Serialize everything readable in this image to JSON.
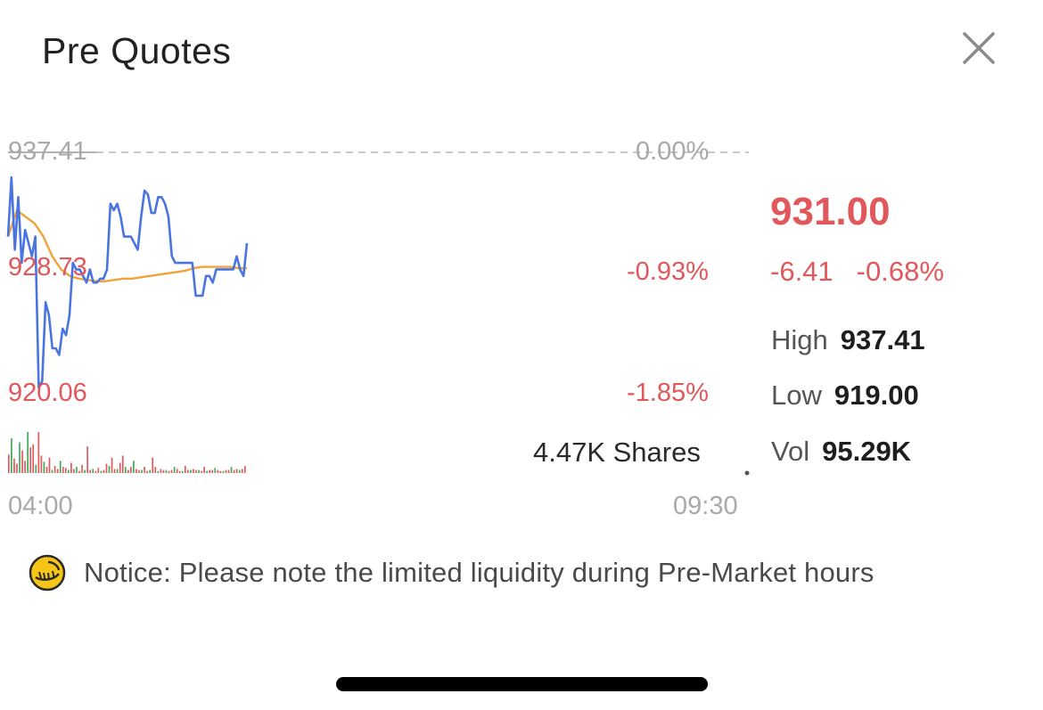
{
  "header": {
    "title": "Pre Quotes"
  },
  "icons": {
    "close": "close-icon",
    "notice": "coin-notice-icon"
  },
  "colors": {
    "up": "#e0585b",
    "price_line": "#4a74e0",
    "avg_line": "#f0a33a",
    "vol_up": "#e0585b",
    "vol_down": "#3daa5a"
  },
  "chart_data": {
    "type": "line",
    "y_axis_left": [
      "937.41",
      "928.73",
      "920.06"
    ],
    "y_axis_right": [
      "0.00%",
      "-0.93%",
      "-1.85%"
    ],
    "x_axis": [
      "04:00",
      "09:30"
    ],
    "ylim": [
      920.06,
      937.41
    ],
    "volume_label": "4.47K Shares",
    "series": [
      {
        "values": [
          931,
          935.5,
          930,
          934,
          929,
          931.5,
          930.5,
          929.5,
          931,
          919.5,
          920,
          926,
          925,
          922.5,
          922.5,
          922,
          924,
          923.5,
          925,
          929,
          928.5,
          928.5,
          928,
          927.5,
          928.5,
          927.5,
          927.5,
          927.8,
          927.8,
          928.5,
          933.5,
          933,
          933.5,
          932.5,
          931,
          931,
          931,
          930.5,
          930,
          932.5,
          934.5,
          934.2,
          932.8,
          932.8,
          934,
          934,
          933.5,
          932.5,
          929.5,
          929,
          929,
          929,
          929,
          929,
          929,
          926.5,
          926.5,
          926.5,
          928,
          928,
          927.5,
          928.5,
          928.5,
          928.5,
          928.5,
          928.5,
          928.5,
          929.5,
          928.5,
          928,
          930.5
        ]
      },
      {
        "values": [
          931,
          933,
          932.5,
          932,
          931,
          929.5,
          928.5,
          928,
          927.8,
          927.7,
          927.6,
          927.6,
          927.7,
          927.8,
          927.8,
          927.9,
          928,
          928.1,
          928.2,
          928.3,
          928.4,
          928.6,
          928.7,
          928.7,
          928.7,
          928.7,
          928.6,
          928.6
        ]
      }
    ],
    "volume": [
      18,
      34,
      14,
      9,
      30,
      22,
      12,
      40,
      25,
      28,
      8,
      40,
      17,
      11,
      6,
      15,
      3,
      7,
      4,
      12,
      6,
      5,
      3,
      10,
      4,
      6,
      2,
      8,
      3,
      26,
      3,
      4,
      2,
      5,
      2,
      3,
      9,
      7,
      15,
      4,
      4,
      10,
      17,
      6,
      3,
      6,
      12,
      4,
      3,
      3,
      6,
      2,
      3,
      15,
      6,
      2,
      4,
      3,
      3,
      2,
      3,
      6,
      4,
      2,
      2,
      7,
      3,
      3,
      4,
      3,
      3,
      2,
      6,
      2,
      3,
      3,
      5,
      3,
      2,
      2,
      3,
      3,
      6,
      3,
      4,
      3,
      4,
      7
    ]
  },
  "quote": {
    "price": "931.00",
    "change": "-6.41",
    "change_pct": "-0.68%",
    "high_label": "High",
    "high": "937.41",
    "low_label": "Low",
    "low": "919.00",
    "vol_label": "Vol",
    "vol": "95.29K"
  },
  "notice": {
    "text": "Notice: Please note the limited liquidity during Pre-Market hours"
  }
}
